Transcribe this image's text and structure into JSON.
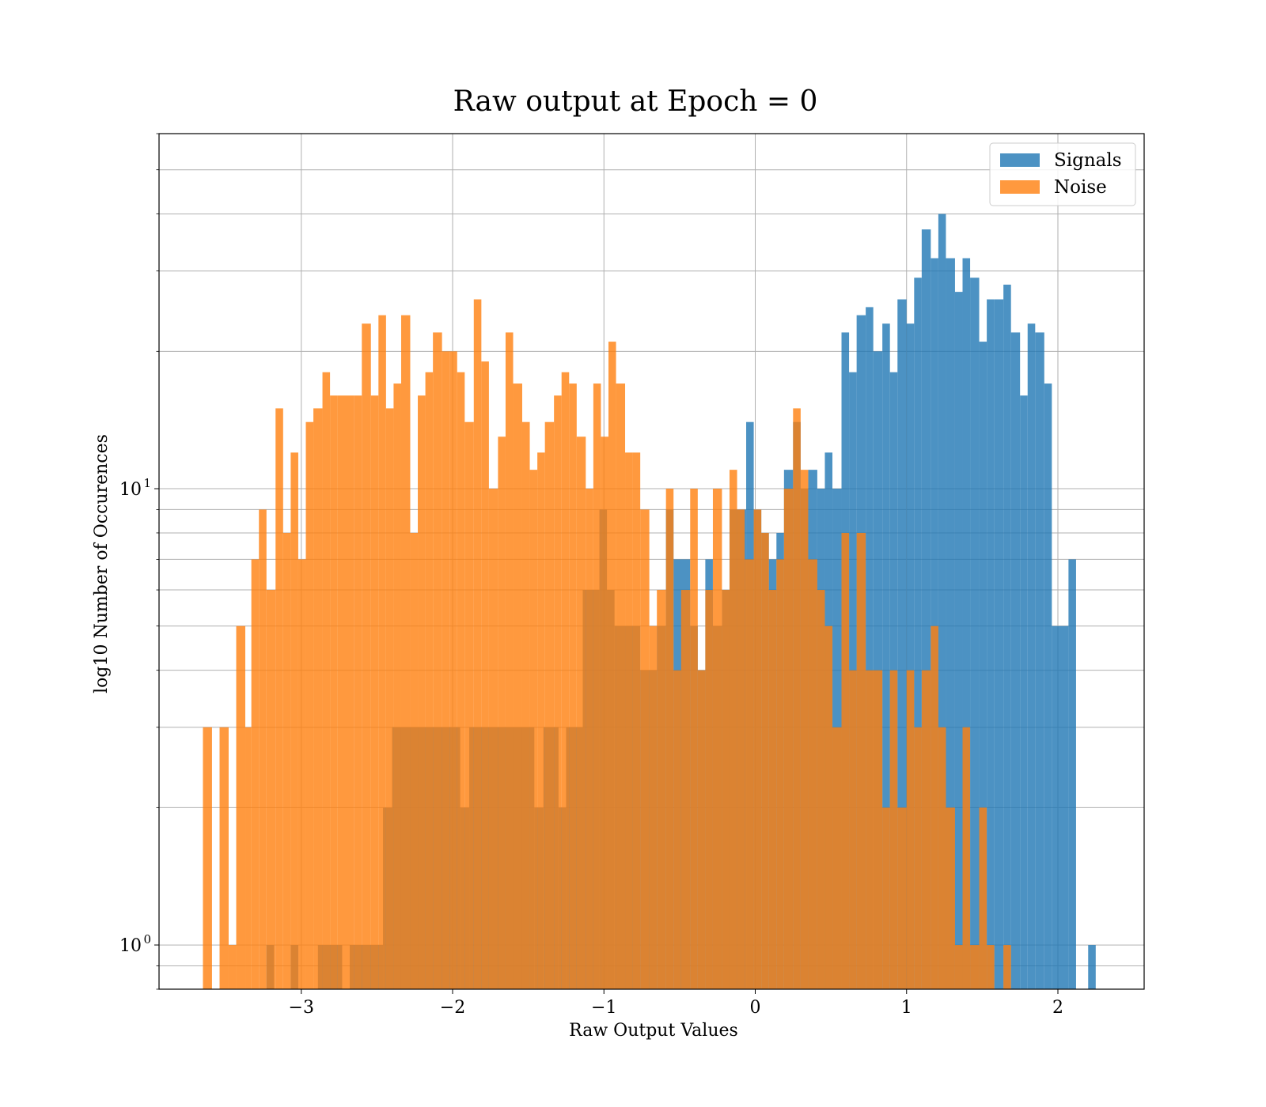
{
  "chart_data": {
    "type": "histogram",
    "title": "Raw output at Epoch = 0",
    "xlabel": "Raw Output Values",
    "ylabel": "log10 Number of Occurences",
    "xlim": [
      -3.94,
      2.57
    ],
    "ylim": [
      0.8,
      60
    ],
    "yscale": "log",
    "grid": true,
    "legend_position": "top-right",
    "x_ticks": [
      {
        "value": -3,
        "label": "−3"
      },
      {
        "value": -2,
        "label": "−2"
      },
      {
        "value": -1,
        "label": "−1"
      },
      {
        "value": 0,
        "label": "0"
      },
      {
        "value": 1,
        "label": "1"
      },
      {
        "value": 2,
        "label": "2"
      }
    ],
    "y_major_ticks": [
      {
        "value": 1,
        "label": "10",
        "exponent": "0"
      },
      {
        "value": 10,
        "label": "10",
        "exponent": "1"
      }
    ],
    "series": [
      {
        "name": "Signals",
        "color": "#1f77b4",
        "opacity": 0.8,
        "bins": [
          [
            -3.23,
            -3.18,
            1
          ],
          [
            -3.07,
            -3.02,
            1
          ],
          [
            -2.89,
            -2.73,
            1
          ],
          [
            -2.68,
            -2.46,
            1
          ],
          [
            -2.46,
            -2.4,
            2
          ],
          [
            -2.4,
            -1.95,
            3
          ],
          [
            -1.95,
            -1.89,
            2
          ],
          [
            -1.89,
            -1.46,
            3
          ],
          [
            -1.46,
            -1.4,
            2
          ],
          [
            -1.4,
            -1.3,
            3
          ],
          [
            -1.3,
            -1.25,
            2
          ],
          [
            -1.25,
            -1.14,
            3
          ],
          [
            -1.14,
            -1.03,
            6
          ],
          [
            -1.03,
            -0.98,
            9
          ],
          [
            -0.98,
            -0.93,
            6
          ],
          [
            -0.93,
            -0.76,
            5
          ],
          [
            -0.76,
            -0.65,
            4
          ],
          [
            -0.65,
            -0.59,
            5
          ],
          [
            -0.59,
            -0.54,
            9
          ],
          [
            -0.54,
            -0.43,
            7
          ],
          [
            -0.43,
            -0.38,
            5
          ],
          [
            -0.38,
            -0.33,
            4
          ],
          [
            -0.33,
            -0.28,
            7
          ],
          [
            -0.28,
            -0.22,
            5
          ],
          [
            -0.22,
            -0.17,
            6
          ],
          [
            -0.17,
            -0.06,
            9
          ],
          [
            -0.06,
            -0.01,
            14
          ],
          [
            -0.01,
            0.04,
            9
          ],
          [
            0.04,
            0.09,
            8
          ],
          [
            0.09,
            0.14,
            7
          ],
          [
            0.14,
            0.19,
            8
          ],
          [
            0.19,
            0.25,
            11
          ],
          [
            0.25,
            0.3,
            14
          ],
          [
            0.3,
            0.35,
            10
          ],
          [
            0.35,
            0.41,
            11
          ],
          [
            0.41,
            0.46,
            10
          ],
          [
            0.46,
            0.51,
            12
          ],
          [
            0.51,
            0.57,
            10
          ],
          [
            0.57,
            0.62,
            22
          ],
          [
            0.62,
            0.67,
            18
          ],
          [
            0.67,
            0.73,
            24
          ],
          [
            0.73,
            0.78,
            25
          ],
          [
            0.78,
            0.84,
            20
          ],
          [
            0.84,
            0.89,
            23
          ],
          [
            0.89,
            0.94,
            18
          ],
          [
            0.94,
            1.0,
            26
          ],
          [
            1.0,
            1.05,
            23
          ],
          [
            1.05,
            1.1,
            29
          ],
          [
            1.1,
            1.16,
            37
          ],
          [
            1.16,
            1.21,
            32
          ],
          [
            1.21,
            1.26,
            40
          ],
          [
            1.26,
            1.32,
            32
          ],
          [
            1.32,
            1.37,
            27
          ],
          [
            1.37,
            1.42,
            32
          ],
          [
            1.42,
            1.48,
            29
          ],
          [
            1.48,
            1.53,
            21
          ],
          [
            1.53,
            1.58,
            26
          ],
          [
            1.58,
            1.64,
            26
          ],
          [
            1.64,
            1.69,
            28
          ],
          [
            1.69,
            1.75,
            22
          ],
          [
            1.75,
            1.8,
            16
          ],
          [
            1.8,
            1.85,
            23
          ],
          [
            1.85,
            1.91,
            22
          ],
          [
            1.91,
            1.96,
            17
          ],
          [
            1.96,
            2.07,
            5
          ],
          [
            2.07,
            2.12,
            7
          ],
          [
            2.12,
            2.2,
            0
          ],
          [
            2.2,
            2.25,
            1
          ]
        ]
      },
      {
        "name": "Noise",
        "color": "#ff7f0e",
        "opacity": 0.8,
        "bins": [
          [
            -3.65,
            -3.59,
            3
          ],
          [
            -3.54,
            -3.48,
            3
          ],
          [
            -3.48,
            -3.43,
            1
          ],
          [
            -3.43,
            -3.37,
            5
          ],
          [
            -3.37,
            -3.33,
            3
          ],
          [
            -3.33,
            -3.28,
            7
          ],
          [
            -3.28,
            -3.23,
            9
          ],
          [
            -3.23,
            -3.17,
            6
          ],
          [
            -3.17,
            -3.12,
            15
          ],
          [
            -3.12,
            -3.07,
            8
          ],
          [
            -3.07,
            -3.02,
            12
          ],
          [
            -3.02,
            -2.97,
            7
          ],
          [
            -2.97,
            -2.92,
            14
          ],
          [
            -2.92,
            -2.86,
            15
          ],
          [
            -2.86,
            -2.81,
            18
          ],
          [
            -2.81,
            -2.76,
            16
          ],
          [
            -2.76,
            -2.65,
            16
          ],
          [
            -2.65,
            -2.6,
            16
          ],
          [
            -2.6,
            -2.54,
            23
          ],
          [
            -2.54,
            -2.49,
            16
          ],
          [
            -2.49,
            -2.44,
            24
          ],
          [
            -2.44,
            -2.39,
            15
          ],
          [
            -2.39,
            -2.34,
            17
          ],
          [
            -2.34,
            -2.28,
            24
          ],
          [
            -2.28,
            -2.23,
            8
          ],
          [
            -2.23,
            -2.18,
            16
          ],
          [
            -2.18,
            -2.13,
            18
          ],
          [
            -2.13,
            -2.07,
            22
          ],
          [
            -2.07,
            -2.02,
            20
          ],
          [
            -2.02,
            -1.97,
            20
          ],
          [
            -1.97,
            -1.92,
            18
          ],
          [
            -1.92,
            -1.86,
            14
          ],
          [
            -1.86,
            -1.81,
            26
          ],
          [
            -1.81,
            -1.76,
            19
          ],
          [
            -1.76,
            -1.7,
            10
          ],
          [
            -1.7,
            -1.65,
            13
          ],
          [
            -1.65,
            -1.6,
            22
          ],
          [
            -1.6,
            -1.54,
            17
          ],
          [
            -1.54,
            -1.49,
            14
          ],
          [
            -1.49,
            -1.44,
            11
          ],
          [
            -1.44,
            -1.39,
            12
          ],
          [
            -1.39,
            -1.33,
            14
          ],
          [
            -1.33,
            -1.28,
            16
          ],
          [
            -1.28,
            -1.23,
            18
          ],
          [
            -1.23,
            -1.18,
            17
          ],
          [
            -1.18,
            -1.12,
            13
          ],
          [
            -1.12,
            -1.07,
            10
          ],
          [
            -1.07,
            -1.02,
            17
          ],
          [
            -1.02,
            -0.97,
            13
          ],
          [
            -0.97,
            -0.92,
            21
          ],
          [
            -0.92,
            -0.86,
            17
          ],
          [
            -0.86,
            -0.81,
            12
          ],
          [
            -0.81,
            -0.76,
            12
          ],
          [
            -0.76,
            -0.7,
            9
          ],
          [
            -0.7,
            -0.65,
            5
          ],
          [
            -0.65,
            -0.59,
            6
          ],
          [
            -0.59,
            -0.54,
            10
          ],
          [
            -0.54,
            -0.49,
            4
          ],
          [
            -0.49,
            -0.43,
            6
          ],
          [
            -0.43,
            -0.38,
            10
          ],
          [
            -0.38,
            -0.33,
            4
          ],
          [
            -0.33,
            -0.28,
            6
          ],
          [
            -0.28,
            -0.22,
            10
          ],
          [
            -0.22,
            -0.17,
            6
          ],
          [
            -0.17,
            -0.12,
            11
          ],
          [
            -0.12,
            -0.07,
            9
          ],
          [
            -0.07,
            -0.01,
            7
          ],
          [
            -0.01,
            0.04,
            9
          ],
          [
            0.04,
            0.09,
            8
          ],
          [
            0.09,
            0.14,
            6
          ],
          [
            0.14,
            0.19,
            7
          ],
          [
            0.19,
            0.25,
            10
          ],
          [
            0.25,
            0.3,
            15
          ],
          [
            0.3,
            0.35,
            11
          ],
          [
            0.35,
            0.41,
            7
          ],
          [
            0.41,
            0.46,
            6
          ],
          [
            0.46,
            0.51,
            5
          ],
          [
            0.51,
            0.57,
            3
          ],
          [
            0.57,
            0.62,
            8
          ],
          [
            0.62,
            0.67,
            4
          ],
          [
            0.67,
            0.73,
            8
          ],
          [
            0.73,
            0.84,
            4
          ],
          [
            0.84,
            0.89,
            2
          ],
          [
            0.89,
            0.94,
            4
          ],
          [
            0.94,
            1.0,
            2
          ],
          [
            1.0,
            1.05,
            4
          ],
          [
            1.05,
            1.1,
            3
          ],
          [
            1.1,
            1.16,
            4
          ],
          [
            1.16,
            1.21,
            5
          ],
          [
            1.21,
            1.26,
            3
          ],
          [
            1.26,
            1.32,
            2
          ],
          [
            1.32,
            1.37,
            1
          ],
          [
            1.37,
            1.42,
            3
          ],
          [
            1.42,
            1.48,
            1
          ],
          [
            1.48,
            1.53,
            2
          ],
          [
            1.53,
            1.58,
            1
          ],
          [
            1.58,
            1.64,
            0
          ],
          [
            1.64,
            1.69,
            1
          ]
        ]
      }
    ]
  }
}
